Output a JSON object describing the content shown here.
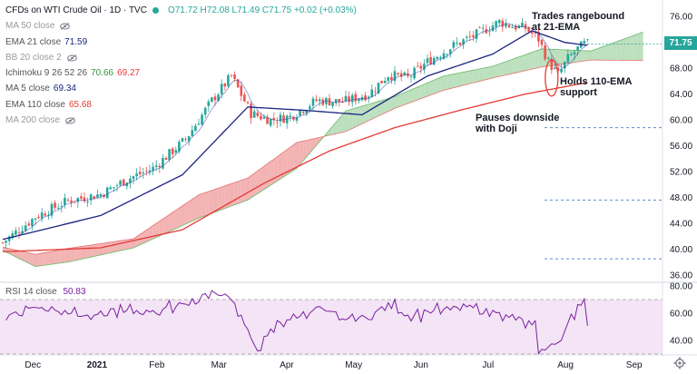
{
  "header": {
    "title": "CFDs on WTI Crude Oil · 1D · TVC",
    "ohlc": "O71.72 H72.08 L71.49 C71.75 +0.02 (+0.03%)"
  },
  "legend": [
    {
      "name": "MA 50 close",
      "value": "",
      "hidden": true,
      "color": "#9a9a9a"
    },
    {
      "name": "EMA 21 close",
      "value": "71.59",
      "hidden": false,
      "color": "#1a237e"
    },
    {
      "name": "BB 20 close 2",
      "value": "",
      "hidden": true,
      "color": "#9a9a9a"
    },
    {
      "name": "Ichimoku 9 26 52 26",
      "value": "70.66",
      "value2": "69.27",
      "hidden": false,
      "color": "#388e3c",
      "color2": "#e53935"
    },
    {
      "name": "MA 5 close",
      "value": "69.34",
      "hidden": false,
      "color": "#1a237e"
    },
    {
      "name": "EMA 110 close",
      "value": "65.68",
      "hidden": false,
      "color": "#e53935"
    },
    {
      "name": "MA 200 close",
      "value": "",
      "hidden": true,
      "color": "#9a9a9a"
    }
  ],
  "last_price": "71.75",
  "annotations": [
    {
      "text": "Trades rangebound",
      "text2": "at 21-EMA"
    },
    {
      "text": "Holds 110-EMA",
      "text2": "support"
    },
    {
      "text": "Pauses downside",
      "text2": "with Doji"
    }
  ],
  "rsi_legend": {
    "name": "RSI 14 close",
    "value": "50.83"
  },
  "colors": {
    "up": "#26a69a",
    "down": "#ef5350",
    "ema21": "#1a237e",
    "ema110": "#e53935",
    "cloud_bull": "#a5d6a7",
    "cloud_bear": "#ef9a9a",
    "rsi": "#7b1fa2",
    "rsi_band": "#f3e5f5"
  },
  "chart_data": [
    {
      "type": "candlestick",
      "title": "CFDs on WTI Crude Oil · 1D · TVC",
      "x_ticks": [
        "Dec",
        "2021",
        "Feb",
        "Mar",
        "Apr",
        "May",
        "Jun",
        "Jul",
        "Aug",
        "Sep"
      ],
      "y_ticks": [
        36,
        40,
        44,
        48,
        52,
        56,
        60,
        64,
        68,
        72,
        76
      ],
      "ylim": [
        35,
        78
      ],
      "reference_levels": [
        58.8,
        47.6,
        38.5
      ],
      "ema21_anchor": [
        [
          0,
          41.5
        ],
        [
          30,
          45.2
        ],
        [
          55,
          51.5
        ],
        [
          75,
          62
        ],
        [
          92,
          61.5
        ],
        [
          110,
          60.8
        ],
        [
          130,
          66.8
        ],
        [
          150,
          70.2
        ],
        [
          162,
          73.8
        ],
        [
          172,
          72
        ],
        [
          178,
          71.6
        ]
      ],
      "ema110_anchor": [
        [
          0,
          39.6
        ],
        [
          30,
          40.2
        ],
        [
          55,
          43.0
        ],
        [
          80,
          50.2
        ],
        [
          100,
          55.2
        ],
        [
          120,
          58.8
        ],
        [
          140,
          61.5
        ],
        [
          160,
          64.0
        ],
        [
          178,
          65.7
        ]
      ],
      "cloud_anchor": [
        [
          0,
          40.3,
          39.8
        ],
        [
          10,
          39.2,
          37.3
        ],
        [
          20,
          40.1,
          38.0
        ],
        [
          40,
          41.6,
          40.2
        ],
        [
          60,
          48.4,
          44.8
        ],
        [
          75,
          51.0,
          47.6
        ],
        [
          90,
          56.5,
          52.5
        ],
        [
          105,
          58.2,
          61.4
        ],
        [
          120,
          61.8,
          63.6
        ],
        [
          135,
          64.6,
          66.8
        ],
        [
          150,
          66.5,
          68.3
        ],
        [
          165,
          68.2,
          71.0
        ],
        [
          180,
          69.27,
          70.66
        ],
        [
          196,
          69.2,
          73.6
        ]
      ],
      "close_anchor": [
        [
          0,
          41
        ],
        [
          10,
          45
        ],
        [
          20,
          47.5
        ],
        [
          30,
          48.5
        ],
        [
          38,
          50.8
        ],
        [
          46,
          52.5
        ],
        [
          56,
          57
        ],
        [
          64,
          63
        ],
        [
          70,
          66.8
        ],
        [
          76,
          61
        ],
        [
          82,
          60
        ],
        [
          88,
          60.5
        ],
        [
          96,
          63
        ],
        [
          104,
          62.8
        ],
        [
          112,
          64
        ],
        [
          118,
          67
        ],
        [
          124,
          66.5
        ],
        [
          130,
          69
        ],
        [
          138,
          71.5
        ],
        [
          146,
          73.5
        ],
        [
          152,
          75.2
        ],
        [
          156,
          74.5
        ],
        [
          160,
          74.2
        ],
        [
          164,
          72.5
        ],
        [
          167,
          69
        ],
        [
          170,
          67
        ],
        [
          173,
          69.5
        ],
        [
          176,
          71
        ],
        [
          178,
          71.75
        ]
      ],
      "annotations": [
        "Trades rangebound at 21-EMA",
        "Holds 110-EMA support",
        "Pauses downside with Doji"
      ]
    },
    {
      "type": "line",
      "title": "RSI 14 close",
      "y_ticks": [
        40,
        60,
        80
      ],
      "ylim": [
        30,
        82
      ],
      "band": [
        30,
        70
      ],
      "last_value": 50.83
    }
  ]
}
